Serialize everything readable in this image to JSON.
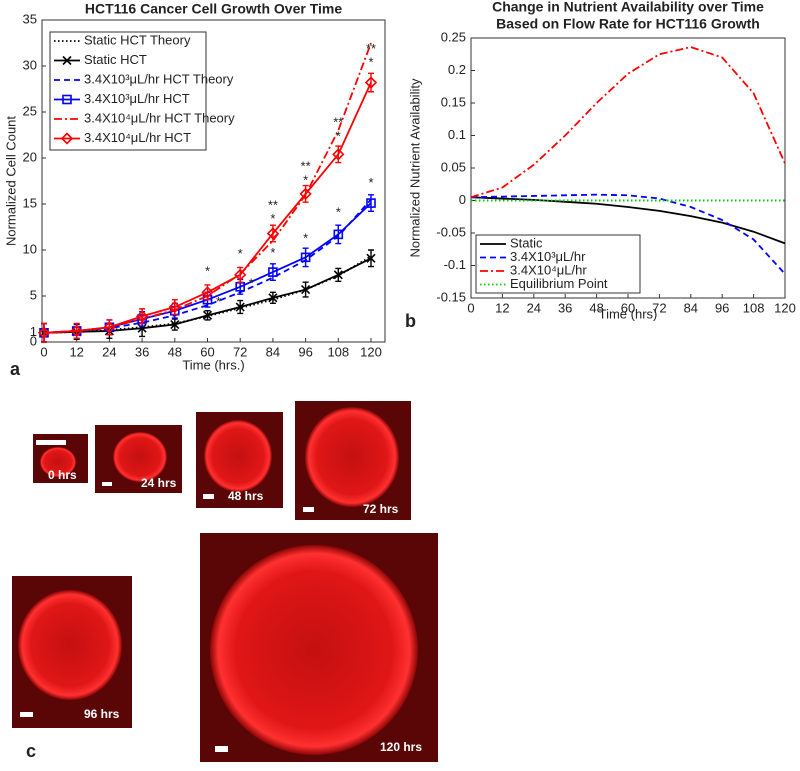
{
  "chart_data": [
    {
      "type": "line",
      "title": "HCT116 Cancer Cell Growth Over Time",
      "xlabel": "Time (hrs.)",
      "ylabel": "Normalized Cell Count",
      "panel_label": "a",
      "x": [
        0,
        12,
        24,
        36,
        48,
        60,
        72,
        84,
        96,
        108,
        120
      ],
      "xlim": [
        0,
        120
      ],
      "xticks": [
        0,
        12,
        24,
        36,
        48,
        60,
        72,
        84,
        96,
        108,
        120
      ],
      "ylim": [
        0,
        35
      ],
      "yticks": [
        0,
        1,
        5,
        10,
        15,
        20,
        25,
        30,
        35
      ],
      "grid": false,
      "legend": "upper left",
      "series": [
        {
          "name": "Static HCT Theory",
          "color": "#000000",
          "style": "dotted",
          "marker": null,
          "values": [
            1,
            1.1,
            1.3,
            1.6,
            2.0,
            2.8,
            3.7,
            4.6,
            5.7,
            7.2,
            9.3
          ]
        },
        {
          "name": "Static HCT",
          "color": "#000000",
          "style": "solid",
          "marker": "x",
          "values": [
            1,
            1.1,
            1.2,
            1.5,
            1.9,
            2.9,
            3.8,
            4.8,
            5.7,
            7.3,
            9.1
          ],
          "errors": [
            1,
            0.8,
            0.8,
            0.9,
            0.6,
            0.5,
            0.7,
            0.6,
            0.8,
            0.7,
            0.9
          ]
        },
        {
          "name": "3.4X10³μL/hr HCT Theory",
          "color": "#0000ff",
          "style": "dashed",
          "marker": null,
          "values": [
            1,
            1.2,
            1.5,
            2.1,
            2.9,
            4.0,
            5.4,
            7.0,
            8.9,
            11.5,
            15.5
          ]
        },
        {
          "name": "3.4X10³μL/hr HCT",
          "color": "#0000ff",
          "style": "solid",
          "marker": "square",
          "values": [
            1,
            1.2,
            1.6,
            2.5,
            3.4,
            4.6,
            6.0,
            7.6,
            9.2,
            11.7,
            15.1
          ],
          "errors": [
            1,
            0.8,
            0.8,
            0.8,
            0.8,
            0.8,
            0.8,
            0.9,
            1.0,
            1.0,
            0.9
          ]
        },
        {
          "name": "3.4X10⁴μL/hr HCT Theory",
          "color": "#ff0000",
          "style": "dashdot",
          "marker": null,
          "values": [
            1,
            1.2,
            1.6,
            2.5,
            3.5,
            5.0,
            7.4,
            11,
            16,
            23,
            32.5
          ]
        },
        {
          "name": "3.4X10⁴μL/hr HCT",
          "color": "#ff0000",
          "style": "solid",
          "marker": "diamond",
          "values": [
            1,
            1.2,
            1.6,
            2.8,
            3.8,
            5.4,
            7.3,
            11.8,
            16.1,
            20.4,
            28.2
          ],
          "errors": [
            1,
            0.8,
            0.8,
            0.8,
            0.8,
            0.8,
            0.8,
            0.9,
            0.9,
            0.9,
            1.0
          ]
        }
      ],
      "annotations": [
        {
          "text": "*",
          "x": 60,
          "y": 7.6
        },
        {
          "text": "*",
          "x": 64,
          "y": 4.3
        },
        {
          "text": "*",
          "x": 72,
          "y": 9.5
        },
        {
          "text": "*",
          "x": 76,
          "y": 6.3
        },
        {
          "text": "**",
          "x": 84,
          "y": 14.8
        },
        {
          "text": "*",
          "x": 84,
          "y": 13.3
        },
        {
          "text": "*",
          "x": 84,
          "y": 9.6
        },
        {
          "text": "**",
          "x": 96,
          "y": 19.0
        },
        {
          "text": "*",
          "x": 96,
          "y": 17.5
        },
        {
          "text": "*",
          "x": 96,
          "y": 11.2
        },
        {
          "text": "**",
          "x": 108,
          "y": 23.8
        },
        {
          "text": "*",
          "x": 108,
          "y": 22.3
        },
        {
          "text": "*",
          "x": 108,
          "y": 14.0
        },
        {
          "text": "**",
          "x": 120,
          "y": 31.8
        },
        {
          "text": "*",
          "x": 120,
          "y": 30.3
        },
        {
          "text": "*",
          "x": 120,
          "y": 17.2
        }
      ]
    },
    {
      "type": "line",
      "title": [
        "Change in Nutrient Availability over Time",
        "Based on Flow Rate for HCT116 Growth"
      ],
      "xlabel": "Time (hrs)",
      "ylabel": "Normalized Nutrient Availability",
      "panel_label": "b",
      "x": [
        0,
        12,
        24,
        36,
        48,
        60,
        72,
        84,
        96,
        108,
        120
      ],
      "xlim": [
        0,
        120
      ],
      "xticks": [
        0,
        12,
        24,
        36,
        48,
        60,
        72,
        84,
        96,
        108,
        120
      ],
      "ylim": [
        -0.15,
        0.25
      ],
      "yticks": [
        -0.15,
        -0.1,
        -0.05,
        0,
        0.05,
        0.1,
        0.15,
        0.2,
        0.25
      ],
      "grid": false,
      "legend": "lower left",
      "series": [
        {
          "name": "Static",
          "color": "#000000",
          "style": "solid",
          "marker": null,
          "values": [
            0.005,
            0.003,
            0.001,
            -0.002,
            -0.005,
            -0.01,
            -0.016,
            -0.024,
            -0.034,
            -0.048,
            -0.066
          ]
        },
        {
          "name": "3.4X10³μL/hr",
          "color": "#0000ff",
          "style": "dashed",
          "marker": null,
          "values": [
            0.005,
            0.006,
            0.007,
            0.008,
            0.009,
            0.008,
            0.003,
            -0.01,
            -0.03,
            -0.06,
            -0.113
          ]
        },
        {
          "name": "3.4X10⁴μL/hr",
          "color": "#ff0000",
          "style": "dashdot",
          "marker": null,
          "values": [
            0.005,
            0.02,
            0.055,
            0.1,
            0.15,
            0.195,
            0.225,
            0.236,
            0.22,
            0.165,
            0.057
          ]
        },
        {
          "name": "Equilibrium Point",
          "color": "#00cc00",
          "style": "dotted",
          "marker": null,
          "values": [
            0,
            0,
            0,
            0,
            0,
            0,
            0,
            0,
            0,
            0,
            0
          ]
        }
      ]
    }
  ],
  "images": {
    "panel_label": "c",
    "panels": [
      {
        "label": "0 hrs"
      },
      {
        "label": "24 hrs"
      },
      {
        "label": "48 hrs"
      },
      {
        "label": "72 hrs"
      },
      {
        "label": "96 hrs"
      },
      {
        "label": "120 hrs"
      }
    ]
  }
}
